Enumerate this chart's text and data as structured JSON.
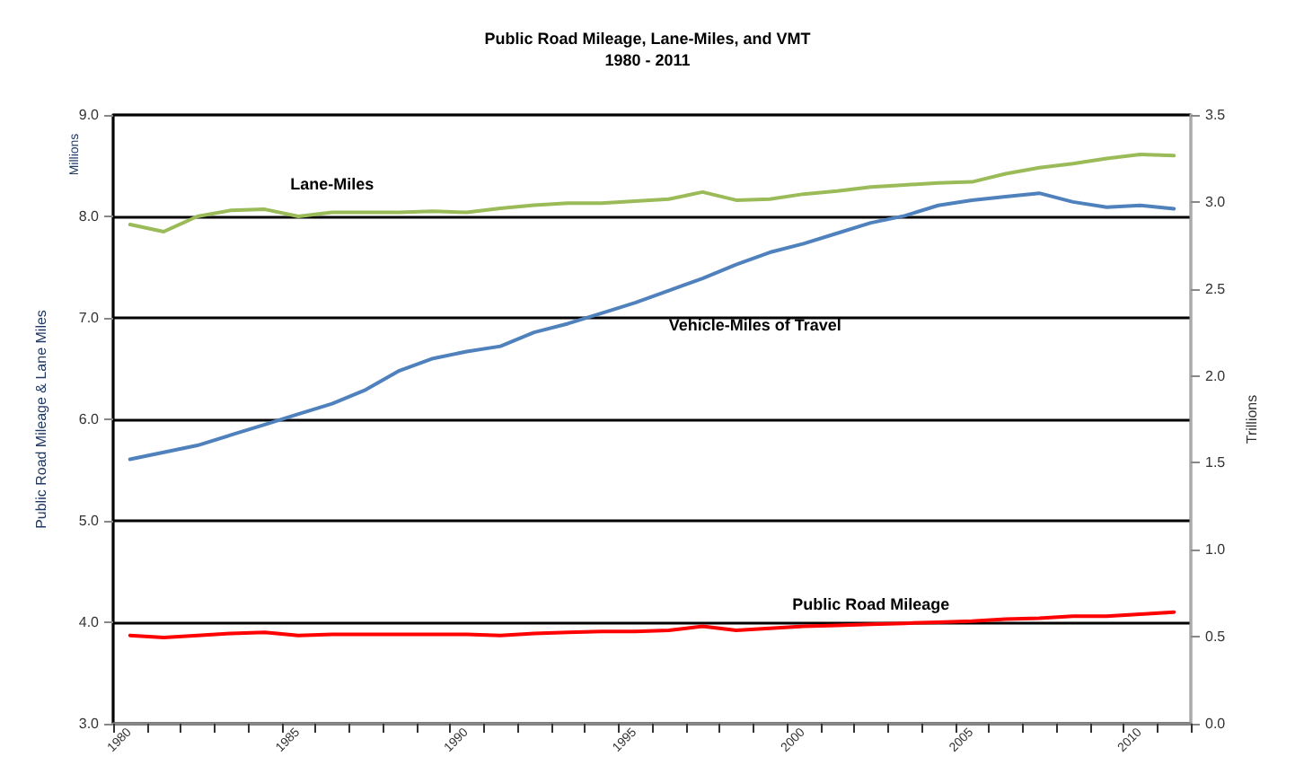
{
  "chart_data": {
    "type": "line",
    "title": "Public Road Mileage, Lane-Miles, and VMT",
    "subtitle": "1980 - 2011",
    "ylabel": "Public Road Mileage & Lane Miles",
    "y2label": "Trillions",
    "annotations": [
      "Millions"
    ],
    "categories": [
      "1980",
      null,
      null,
      null,
      null,
      "1985",
      null,
      null,
      null,
      null,
      "1990",
      null,
      null,
      null,
      null,
      "1995",
      null,
      null,
      null,
      null,
      "2000",
      null,
      null,
      null,
      null,
      "2005",
      null,
      null,
      null,
      null,
      "2010",
      null
    ],
    "series": [
      {
        "name": "Lane-Miles",
        "color": "#9bbb59",
        "values": [
          7.92,
          7.85,
          8.0,
          8.06,
          8.07,
          8.0,
          8.04,
          8.04,
          8.04,
          8.05,
          8.04,
          8.08,
          8.11,
          8.13,
          8.13,
          8.15,
          8.17,
          8.24,
          8.16,
          8.17,
          8.22,
          8.25,
          8.29,
          8.31,
          8.33,
          8.34,
          8.42,
          8.48,
          8.52,
          8.57,
          8.61,
          8.6
        ]
      },
      {
        "name": "Vehicle-Miles of Travel",
        "color": "#4f81bd",
        "axis": "y2",
        "values": [
          1.52,
          1.56,
          1.6,
          1.66,
          1.72,
          1.78,
          1.84,
          1.92,
          2.03,
          2.1,
          2.14,
          2.17,
          2.25,
          2.3,
          2.36,
          2.42,
          2.49,
          2.56,
          2.64,
          2.71,
          2.76,
          2.82,
          2.88,
          2.92,
          2.98,
          3.01,
          3.03,
          3.05,
          3.0,
          2.97,
          2.98,
          2.96
        ]
      },
      {
        "name": "Public Road Mileage",
        "color": "#ff0000",
        "values": [
          3.87,
          3.85,
          3.87,
          3.89,
          3.9,
          3.87,
          3.88,
          3.88,
          3.88,
          3.88,
          3.88,
          3.87,
          3.89,
          3.9,
          3.91,
          3.91,
          3.92,
          3.96,
          3.92,
          3.94,
          3.96,
          3.97,
          3.98,
          3.99,
          4.0,
          4.01,
          4.03,
          4.04,
          4.06,
          4.06,
          4.08,
          4.1
        ]
      }
    ],
    "ylim": [
      3,
      9
    ],
    "yticks": [
      {
        "value": 3,
        "label": "3.0"
      },
      {
        "value": 4,
        "label": "4.0"
      },
      {
        "value": 5,
        "label": "5.0"
      },
      {
        "value": 6,
        "label": "6.0"
      },
      {
        "value": 7,
        "label": "7.0"
      },
      {
        "value": 8,
        "label": "8.0"
      },
      {
        "value": 9,
        "label": "9.0"
      }
    ],
    "y2lim": [
      0,
      3.5
    ],
    "y2ticks": [
      {
        "value": 0,
        "label": "0.0"
      },
      {
        "value": 0.5,
        "label": "0.5"
      },
      {
        "value": 1,
        "label": "1.0"
      },
      {
        "value": 1.5,
        "label": "1.5"
      },
      {
        "value": 2,
        "label": "2.0"
      },
      {
        "value": 2.5,
        "label": "2.5"
      },
      {
        "value": 3,
        "label": "3.0"
      },
      {
        "value": 3.5,
        "label": "3.5"
      }
    ],
    "grid": "y",
    "legend": false,
    "marker": "none",
    "line_style": "solid"
  }
}
